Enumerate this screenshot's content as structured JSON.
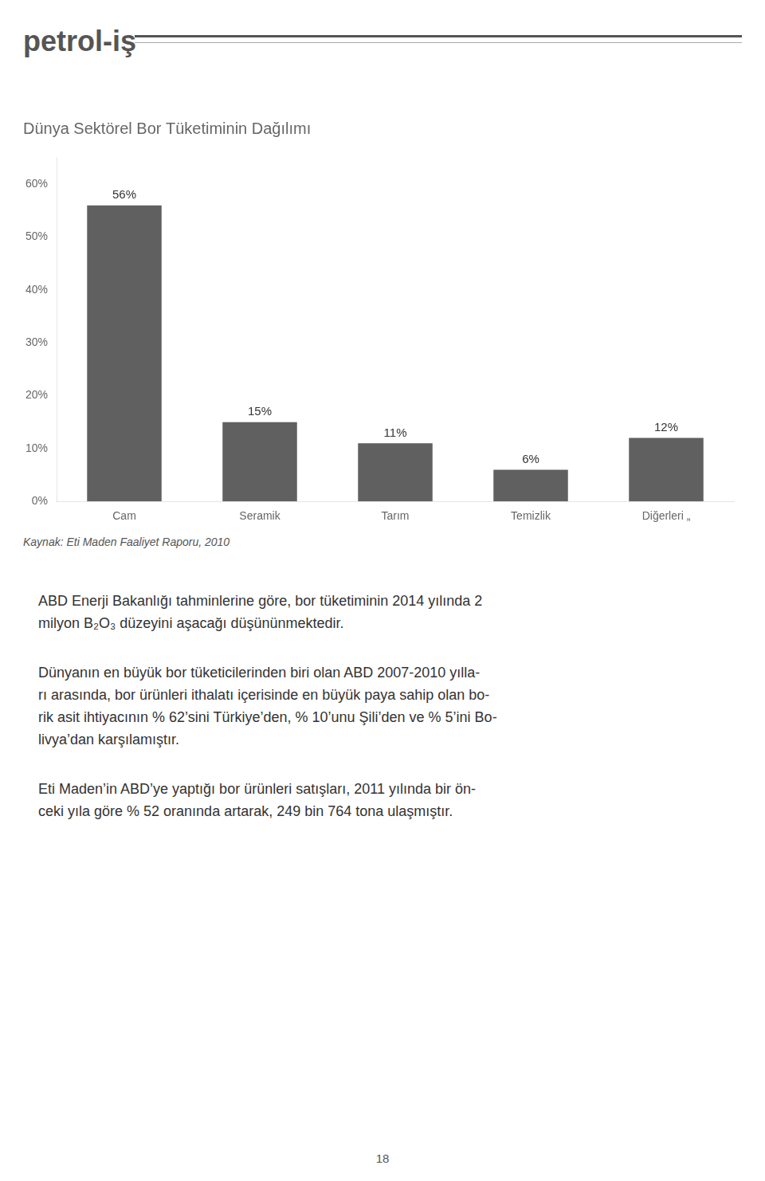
{
  "chart_data": {
    "type": "bar",
    "title": "Dünya Sektörel Bor Tüketiminin Dağılımı",
    "categories": [
      "Cam",
      "Seramik",
      "Tarım",
      "Temizlik",
      "Diğerleri „"
    ],
    "values": [
      56,
      15,
      11,
      6,
      12
    ],
    "value_labels": [
      "56%",
      "15%",
      "11%",
      "6%",
      "12%"
    ],
    "data_labels": true,
    "color": "#606060",
    "ylim": [
      0,
      65
    ],
    "yticks": [
      {
        "value": 0,
        "label": "0%"
      },
      {
        "value": 10,
        "label": "10%"
      },
      {
        "value": 20,
        "label": "20%"
      },
      {
        "value": 30,
        "label": "30%"
      },
      {
        "value": 40,
        "label": "40%"
      },
      {
        "value": 50,
        "label": "50%"
      },
      {
        "value": 60,
        "label": "60%"
      }
    ],
    "grid": false,
    "annotations": [
      "petrol-iş",
      "Kaynak: Eti Maden Faaliyet Raporu, 2010",
      "ABD Enerji Bakanlığı tahminlerine göre, bor tüketiminin 2014 yılında 2\nmilyon B₂O₃ düzeyini aşacağı düşününmektedir.",
      "Dünyanın en büyük bor tüketicilerinden biri olan ABD 2007-2010 yılla-\nrı arasında, bor ürünleri ithalatı içerisinde en büyük paya sahip olan bo-\nrik asit ihtiyacının % 62’sini Türkiye’den, % 10’unu Şili’den ve % 5’ini Bo-\nlivya’dan karşılamıştır.",
      "Eti Maden’in ABD’ye yaptığı bor ürünleri satışları, 2011 yılında bir ön-\nceki yıla göre % 52 oranında artarak, 249 bin 764 tona ulaşmıştır.",
      "18"
    ]
  }
}
